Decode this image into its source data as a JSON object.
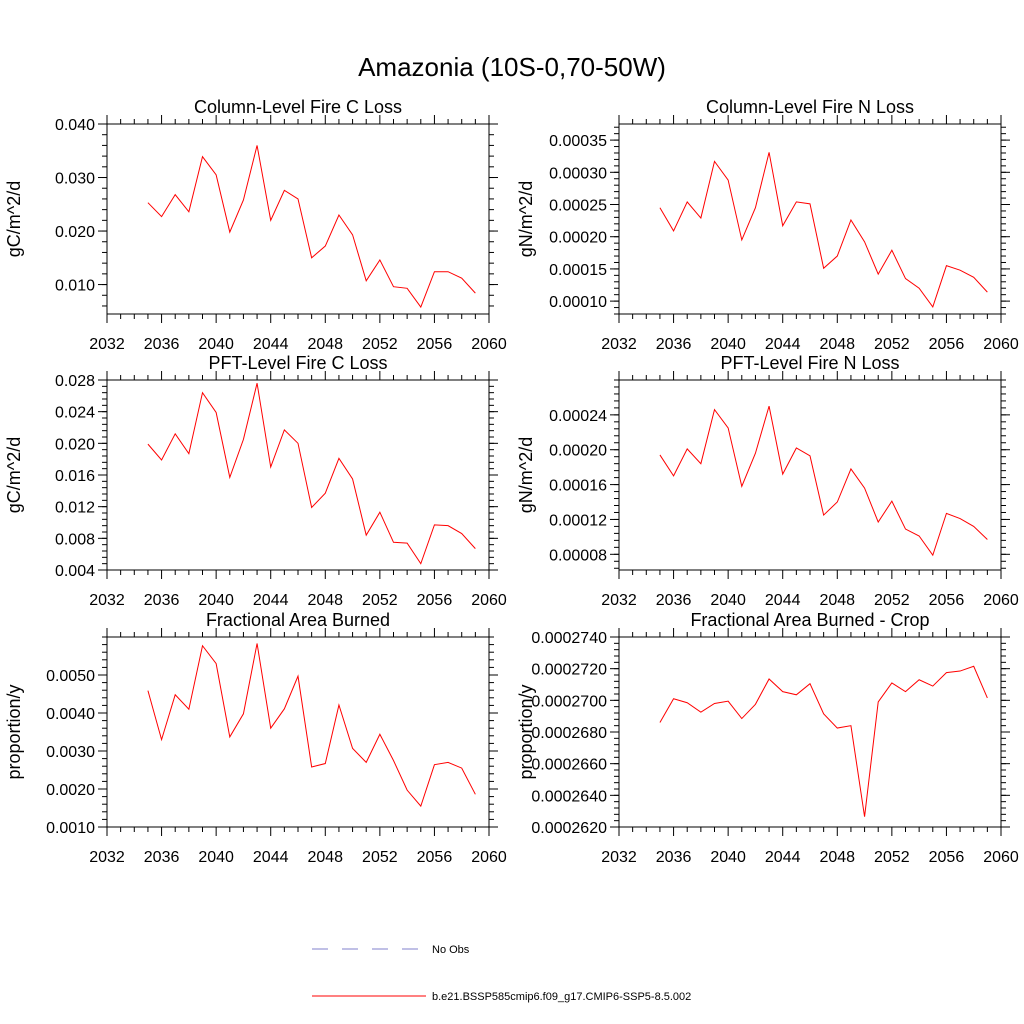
{
  "title": "Amazonia (10S-0,70-50W)",
  "colors": {
    "model": "#ff0000",
    "obs": "#8080cc",
    "axis": "#000000"
  },
  "legend": [
    {
      "label": "No Obs",
      "style": "dashed",
      "color": "#8080cc"
    },
    {
      "label": "b.e21.BSSP585cmip6.f09_g17.CMIP6-SSP5-8.5.002",
      "style": "solid",
      "color": "#ff0000"
    }
  ],
  "chart_data": [
    {
      "type": "line",
      "title": "Column-Level Fire C Loss",
      "ylabel": "gC/m^2/d",
      "xlabel": "",
      "xlim": [
        2032,
        2060
      ],
      "ylim": [
        0.0045,
        0.04
      ],
      "xticks": [
        2032,
        2036,
        2040,
        2044,
        2048,
        2052,
        2056,
        2060
      ],
      "xtick_labels": [
        "2032",
        "2036",
        "2040",
        "2044",
        "2048",
        "2052",
        "2056",
        "2060"
      ],
      "yticks": [
        0.01,
        0.02,
        0.03,
        0.04
      ],
      "ytick_labels": [
        "0.010",
        "0.020",
        "0.030",
        "0.040"
      ],
      "x": [
        2035,
        2036,
        2037,
        2038,
        2039,
        2040,
        2041,
        2042,
        2043,
        2044,
        2045,
        2046,
        2047,
        2048,
        2049,
        2050,
        2051,
        2052,
        2053,
        2054,
        2055,
        2056,
        2057,
        2058,
        2059
      ],
      "series": [
        {
          "name": "b.e21.BSSP585cmip6.f09_g17.CMIP6-SSP5-8.5.002",
          "values": [
            0.0253,
            0.0227,
            0.0268,
            0.0236,
            0.0339,
            0.0305,
            0.0198,
            0.0258,
            0.036,
            0.022,
            0.0276,
            0.026,
            0.015,
            0.0172,
            0.023,
            0.0193,
            0.0107,
            0.0146,
            0.0096,
            0.0093,
            0.0058,
            0.0124,
            0.0124,
            0.0112,
            0.0084
          ]
        }
      ]
    },
    {
      "type": "line",
      "title": "Column-Level Fire N Loss",
      "ylabel": "gN/m^2/d",
      "xlabel": "",
      "xlim": [
        2032,
        2060
      ],
      "ylim": [
        8e-05,
        0.000375
      ],
      "xticks": [
        2032,
        2036,
        2040,
        2044,
        2048,
        2052,
        2056,
        2060
      ],
      "xtick_labels": [
        "2032",
        "2036",
        "2040",
        "2044",
        "2048",
        "2052",
        "2056",
        "2060"
      ],
      "yticks": [
        0.0001,
        0.00015,
        0.0002,
        0.00025,
        0.0003,
        0.00035
      ],
      "ytick_labels": [
        "0.00010",
        "0.00015",
        "0.00020",
        "0.00025",
        "0.00030",
        "0.00035"
      ],
      "x": [
        2035,
        2036,
        2037,
        2038,
        2039,
        2040,
        2041,
        2042,
        2043,
        2044,
        2045,
        2046,
        2047,
        2048,
        2049,
        2050,
        2051,
        2052,
        2053,
        2054,
        2055,
        2056,
        2057,
        2058,
        2059
      ],
      "series": [
        {
          "name": "b.e21.BSSP585cmip6.f09_g17.CMIP6-SSP5-8.5.002",
          "values": [
            0.000245,
            0.000209,
            0.000254,
            0.000229,
            0.000317,
            0.000288,
            0.000195,
            0.000245,
            0.000331,
            0.000217,
            0.000254,
            0.000251,
            0.000151,
            0.00017,
            0.000226,
            0.000192,
            0.000142,
            0.000179,
            0.000135,
            0.00012,
            9.1e-05,
            0.000155,
            0.000148,
            0.000137,
            0.000114
          ]
        }
      ]
    },
    {
      "type": "line",
      "title": "PFT-Level Fire C Loss",
      "ylabel": "gC/m^2/d",
      "xlabel": "",
      "xlim": [
        2032,
        2060
      ],
      "ylim": [
        0.004,
        0.028
      ],
      "xticks": [
        2032,
        2036,
        2040,
        2044,
        2048,
        2052,
        2056,
        2060
      ],
      "xtick_labels": [
        "2032",
        "2036",
        "2040",
        "2044",
        "2048",
        "2052",
        "2056",
        "2060"
      ],
      "yticks": [
        0.004,
        0.008,
        0.012,
        0.016,
        0.02,
        0.024,
        0.028
      ],
      "ytick_labels": [
        "0.004",
        "0.008",
        "0.012",
        "0.016",
        "0.020",
        "0.024",
        "0.028"
      ],
      "x": [
        2035,
        2036,
        2037,
        2038,
        2039,
        2040,
        2041,
        2042,
        2043,
        2044,
        2045,
        2046,
        2047,
        2048,
        2049,
        2050,
        2051,
        2052,
        2053,
        2054,
        2055,
        2056,
        2057,
        2058,
        2059
      ],
      "series": [
        {
          "name": "b.e21.BSSP585cmip6.f09_g17.CMIP6-SSP5-8.5.002",
          "values": [
            0.0199,
            0.0179,
            0.0212,
            0.0187,
            0.0264,
            0.0239,
            0.0157,
            0.0205,
            0.0276,
            0.017,
            0.0217,
            0.02,
            0.0119,
            0.0137,
            0.0181,
            0.0155,
            0.0084,
            0.0113,
            0.0075,
            0.0074,
            0.0048,
            0.0097,
            0.0096,
            0.0086,
            0.0067
          ]
        }
      ]
    },
    {
      "type": "line",
      "title": "PFT-Level Fire N Loss",
      "ylabel": "gN/m^2/d",
      "xlabel": "",
      "xlim": [
        2032,
        2060
      ],
      "ylim": [
        6.2e-05,
        0.00028
      ],
      "xticks": [
        2032,
        2036,
        2040,
        2044,
        2048,
        2052,
        2056,
        2060
      ],
      "xtick_labels": [
        "2032",
        "2036",
        "2040",
        "2044",
        "2048",
        "2052",
        "2056",
        "2060"
      ],
      "yticks": [
        8e-05,
        0.00012,
        0.00016,
        0.0002,
        0.00024
      ],
      "ytick_labels": [
        "0.00008",
        "0.00012",
        "0.00016",
        "0.00020",
        "0.00024"
      ],
      "x": [
        2035,
        2036,
        2037,
        2038,
        2039,
        2040,
        2041,
        2042,
        2043,
        2044,
        2045,
        2046,
        2047,
        2048,
        2049,
        2050,
        2051,
        2052,
        2053,
        2054,
        2055,
        2056,
        2057,
        2058,
        2059
      ],
      "series": [
        {
          "name": "b.e21.BSSP585cmip6.f09_g17.CMIP6-SSP5-8.5.002",
          "values": [
            0.000194,
            0.00017,
            0.000201,
            0.000184,
            0.000246,
            0.000225,
            0.000158,
            0.000196,
            0.00025,
            0.000172,
            0.000202,
            0.000193,
            0.000125,
            0.00014,
            0.000178,
            0.000156,
            0.000117,
            0.000141,
            0.000109,
            0.000101,
            7.9e-05,
            0.000127,
            0.000121,
            0.000112,
            9.7e-05
          ]
        }
      ]
    },
    {
      "type": "line",
      "title": "Fractional Area Burned",
      "ylabel": "proportion/y",
      "xlabel": "",
      "xlim": [
        2032,
        2060
      ],
      "ylim": [
        0.001,
        0.006
      ],
      "xticks": [
        2032,
        2036,
        2040,
        2044,
        2048,
        2052,
        2056,
        2060
      ],
      "xtick_labels": [
        "2032",
        "2036",
        "2040",
        "2044",
        "2048",
        "2052",
        "2056",
        "2060"
      ],
      "yticks": [
        0.001,
        0.002,
        0.003,
        0.004,
        0.005
      ],
      "ytick_labels": [
        "0.0010",
        "0.0020",
        "0.0030",
        "0.0040",
        "0.0050"
      ],
      "x": [
        2035,
        2036,
        2037,
        2038,
        2039,
        2040,
        2041,
        2042,
        2043,
        2044,
        2045,
        2046,
        2047,
        2048,
        2049,
        2050,
        2051,
        2052,
        2053,
        2054,
        2055,
        2056,
        2057,
        2058,
        2059
      ],
      "series": [
        {
          "name": "b.e21.BSSP585cmip6.f09_g17.CMIP6-SSP5-8.5.002",
          "values": [
            0.00459,
            0.0033,
            0.00448,
            0.0041,
            0.00577,
            0.0053,
            0.00337,
            0.00398,
            0.00583,
            0.0036,
            0.00411,
            0.00497,
            0.00258,
            0.00267,
            0.00421,
            0.00307,
            0.0027,
            0.00344,
            0.00275,
            0.00197,
            0.00155,
            0.00264,
            0.0027,
            0.00255,
            0.00186
          ]
        }
      ]
    },
    {
      "type": "line",
      "title": "Fractional Area Burned - Crop",
      "ylabel": "proportion/y",
      "xlabel": "",
      "xlim": [
        2032,
        2060
      ],
      "ylim": [
        0.000262,
        0.000274
      ],
      "xticks": [
        2032,
        2036,
        2040,
        2044,
        2048,
        2052,
        2056,
        2060
      ],
      "xtick_labels": [
        "2032",
        "2036",
        "2040",
        "2044",
        "2048",
        "2052",
        "2056",
        "2060"
      ],
      "yticks": [
        0.000262,
        0.000264,
        0.000266,
        0.000268,
        0.00027,
        0.000272,
        0.000274
      ],
      "ytick_labels": [
        "0.0002620",
        "0.0002640",
        "0.0002660",
        "0.0002680",
        "0.0002700",
        "0.0002720",
        "0.0002740"
      ],
      "x": [
        2035,
        2036,
        2037,
        2038,
        2039,
        2040,
        2041,
        2042,
        2043,
        2044,
        2045,
        2046,
        2047,
        2048,
        2049,
        2050,
        2051,
        2052,
        2053,
        2054,
        2055,
        2056,
        2057,
        2058,
        2059
      ],
      "series": [
        {
          "name": "b.e21.BSSP585cmip6.f09_g17.CMIP6-SSP5-8.5.002",
          "values": [
            0.0002686,
            0.0002701,
            0.00026985,
            0.00026925,
            0.0002698,
            0.00026995,
            0.00026885,
            0.00026975,
            0.00027135,
            0.00027055,
            0.00027035,
            0.00027105,
            0.00026915,
            0.00026825,
            0.0002684,
            0.00026265,
            0.0002699,
            0.0002711,
            0.00027055,
            0.0002713,
            0.0002709,
            0.00027175,
            0.00027185,
            0.00027215,
            0.00027015
          ]
        }
      ]
    }
  ]
}
